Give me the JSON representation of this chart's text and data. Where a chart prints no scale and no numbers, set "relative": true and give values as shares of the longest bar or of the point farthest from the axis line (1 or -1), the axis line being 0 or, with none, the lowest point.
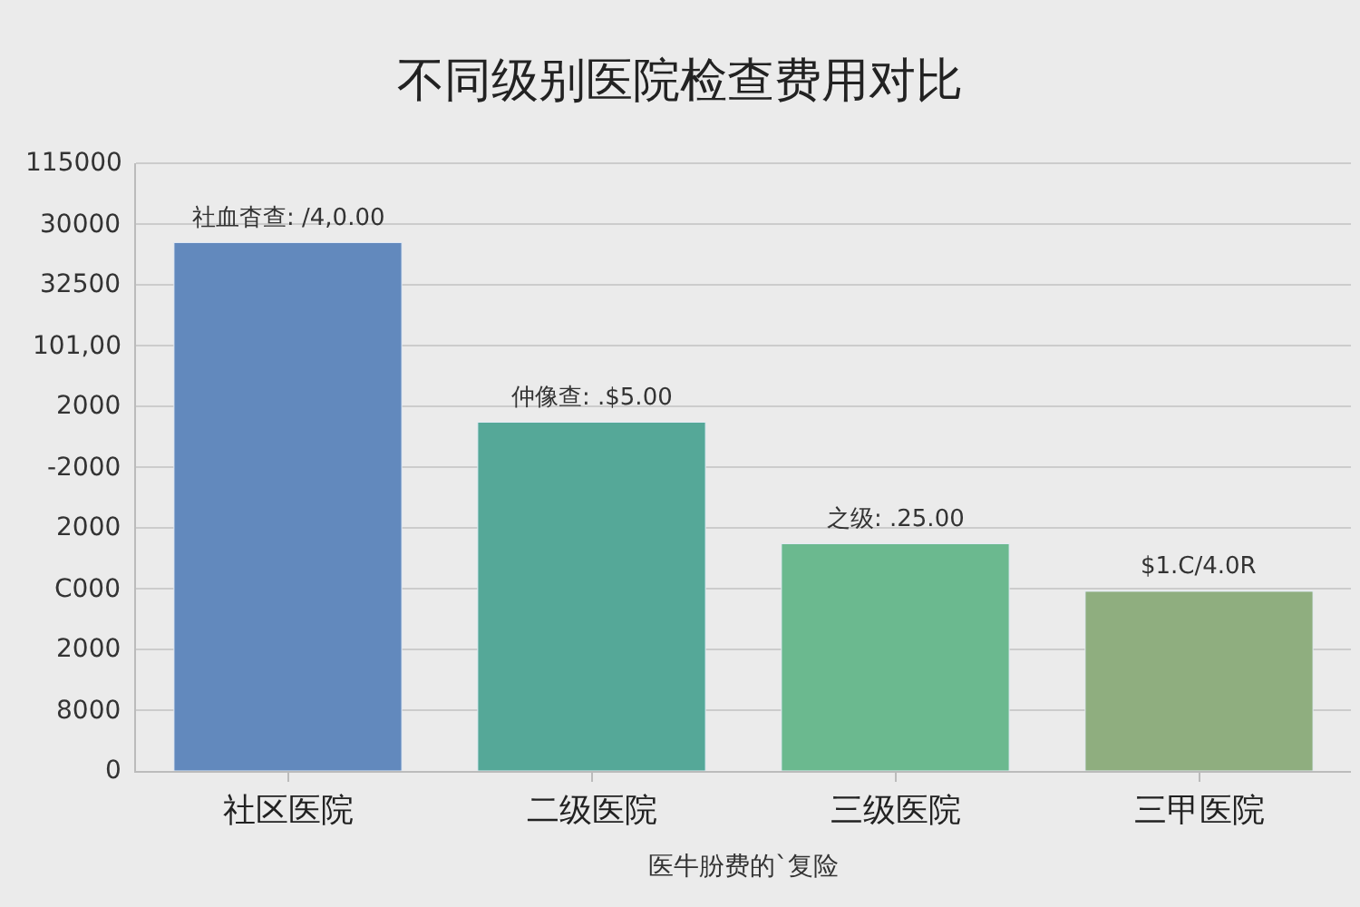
{
  "chart_data": {
    "type": "bar",
    "title": "不同级别医院检查费用对比",
    "xlabel": "医牛朌费的`复险",
    "categories": [
      "社区医院",
      "二级医院",
      "三级医院",
      "三甲医院"
    ],
    "relative": true,
    "values": [
      1,
      0.66,
      0.43,
      0.34
    ],
    "colors": [
      "#6289bd",
      "#55a898",
      "#6bb98f",
      "#8fae7f"
    ],
    "annotations": [
      "115000",
      "30000",
      "32500",
      "101,00",
      "2000",
      "-2000",
      "2000",
      "C000",
      "2000",
      "8000",
      "0",
      {
        "text": "社血杳查: /4,0.00",
        "x": "社区医院",
        "y": 1
      },
      {
        "text": "仲像查: .$5.00",
        "x": "二级医院",
        "y": 0.66
      },
      {
        "text": "之级: .25.00",
        "x": "三级医院",
        "y": 0.43
      },
      {
        "text": "$1.C/4.0R",
        "x": "三甲医院",
        "y": 0.34
      }
    ],
    "grid": "y"
  }
}
